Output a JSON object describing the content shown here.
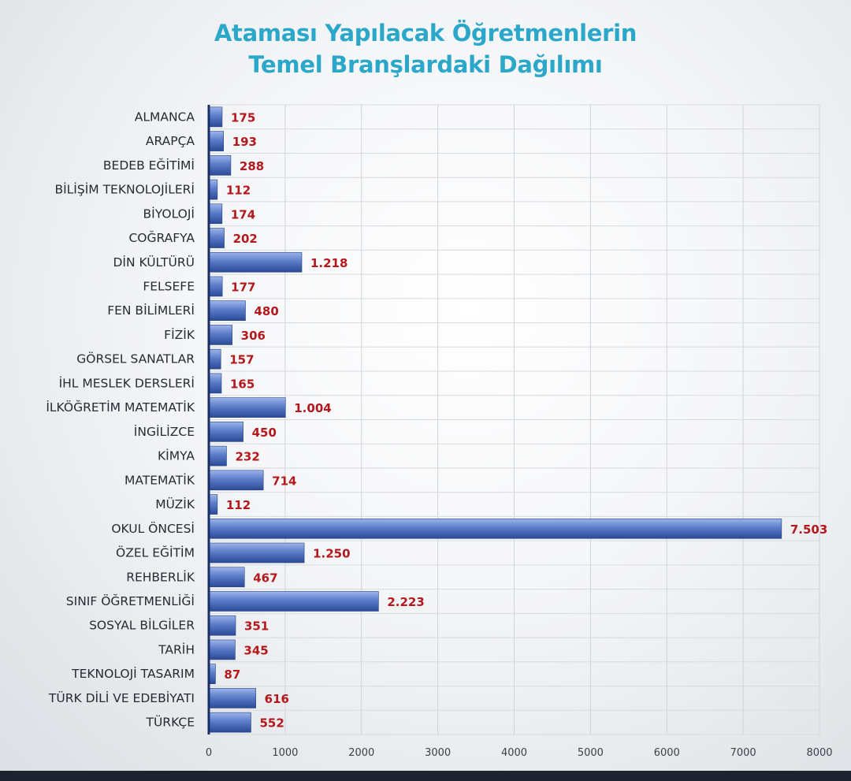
{
  "chart_data": {
    "type": "bar",
    "orientation": "horizontal",
    "title_lines": [
      "Ataması Yapılacak Öğretmenlerin",
      "Temel Branşlardaki Dağılımı"
    ],
    "categories": [
      "ALMANCA",
      "ARAPÇA",
      "BEDEB EĞİTİMİ",
      "BİLİŞİM TEKNOLOJİLERİ",
      "BİYOLOJİ",
      "COĞRAFYA",
      "DİN KÜLTÜRÜ",
      "FELSEFE",
      "FEN BİLİMLERİ",
      "FİZİK",
      "GÖRSEL SANATLAR",
      "İHL MESLEK DERSLERİ",
      "İLKÖĞRETİM MATEMATİK",
      "İNGİLİZCE",
      "KİMYA",
      "MATEMATİK",
      "MÜZİK",
      "OKUL ÖNCESİ",
      "ÖZEL EĞİTİM",
      "REHBERLİK",
      "SINIF ÖĞRETMENLİĞİ",
      "SOSYAL BİLGİLER",
      "TARİH",
      "TEKNOLOJİ TASARIM",
      "TÜRK DİLİ VE EDEBİYATI",
      "TÜRKÇE"
    ],
    "values": [
      175,
      193,
      288,
      112,
      174,
      202,
      1218,
      177,
      480,
      306,
      157,
      165,
      1004,
      450,
      232,
      714,
      112,
      7503,
      1250,
      467,
      2223,
      351,
      345,
      87,
      616,
      552
    ],
    "value_labels": [
      "175",
      "193",
      "288",
      "112",
      "174",
      "202",
      "1.218",
      "177",
      "480",
      "306",
      "157",
      "165",
      "1.004",
      "450",
      "232",
      "714",
      "112",
      "7.503",
      "1.250",
      "467",
      "2.223",
      "351",
      "345",
      "87",
      "616",
      "552"
    ],
    "xlim": [
      0,
      8000
    ],
    "xticks": [
      "0",
      "1000",
      "2000",
      "3000",
      "4000",
      "5000",
      "6000",
      "7000",
      "8000"
    ],
    "grid": true,
    "legend": "none",
    "colors": {
      "title": "#2aa7c9",
      "bar_light": "#8fa9e0",
      "bar_dark": "#2d4f9c",
      "value_label": "#b3181c",
      "grid": "#cfd3d9"
    }
  }
}
